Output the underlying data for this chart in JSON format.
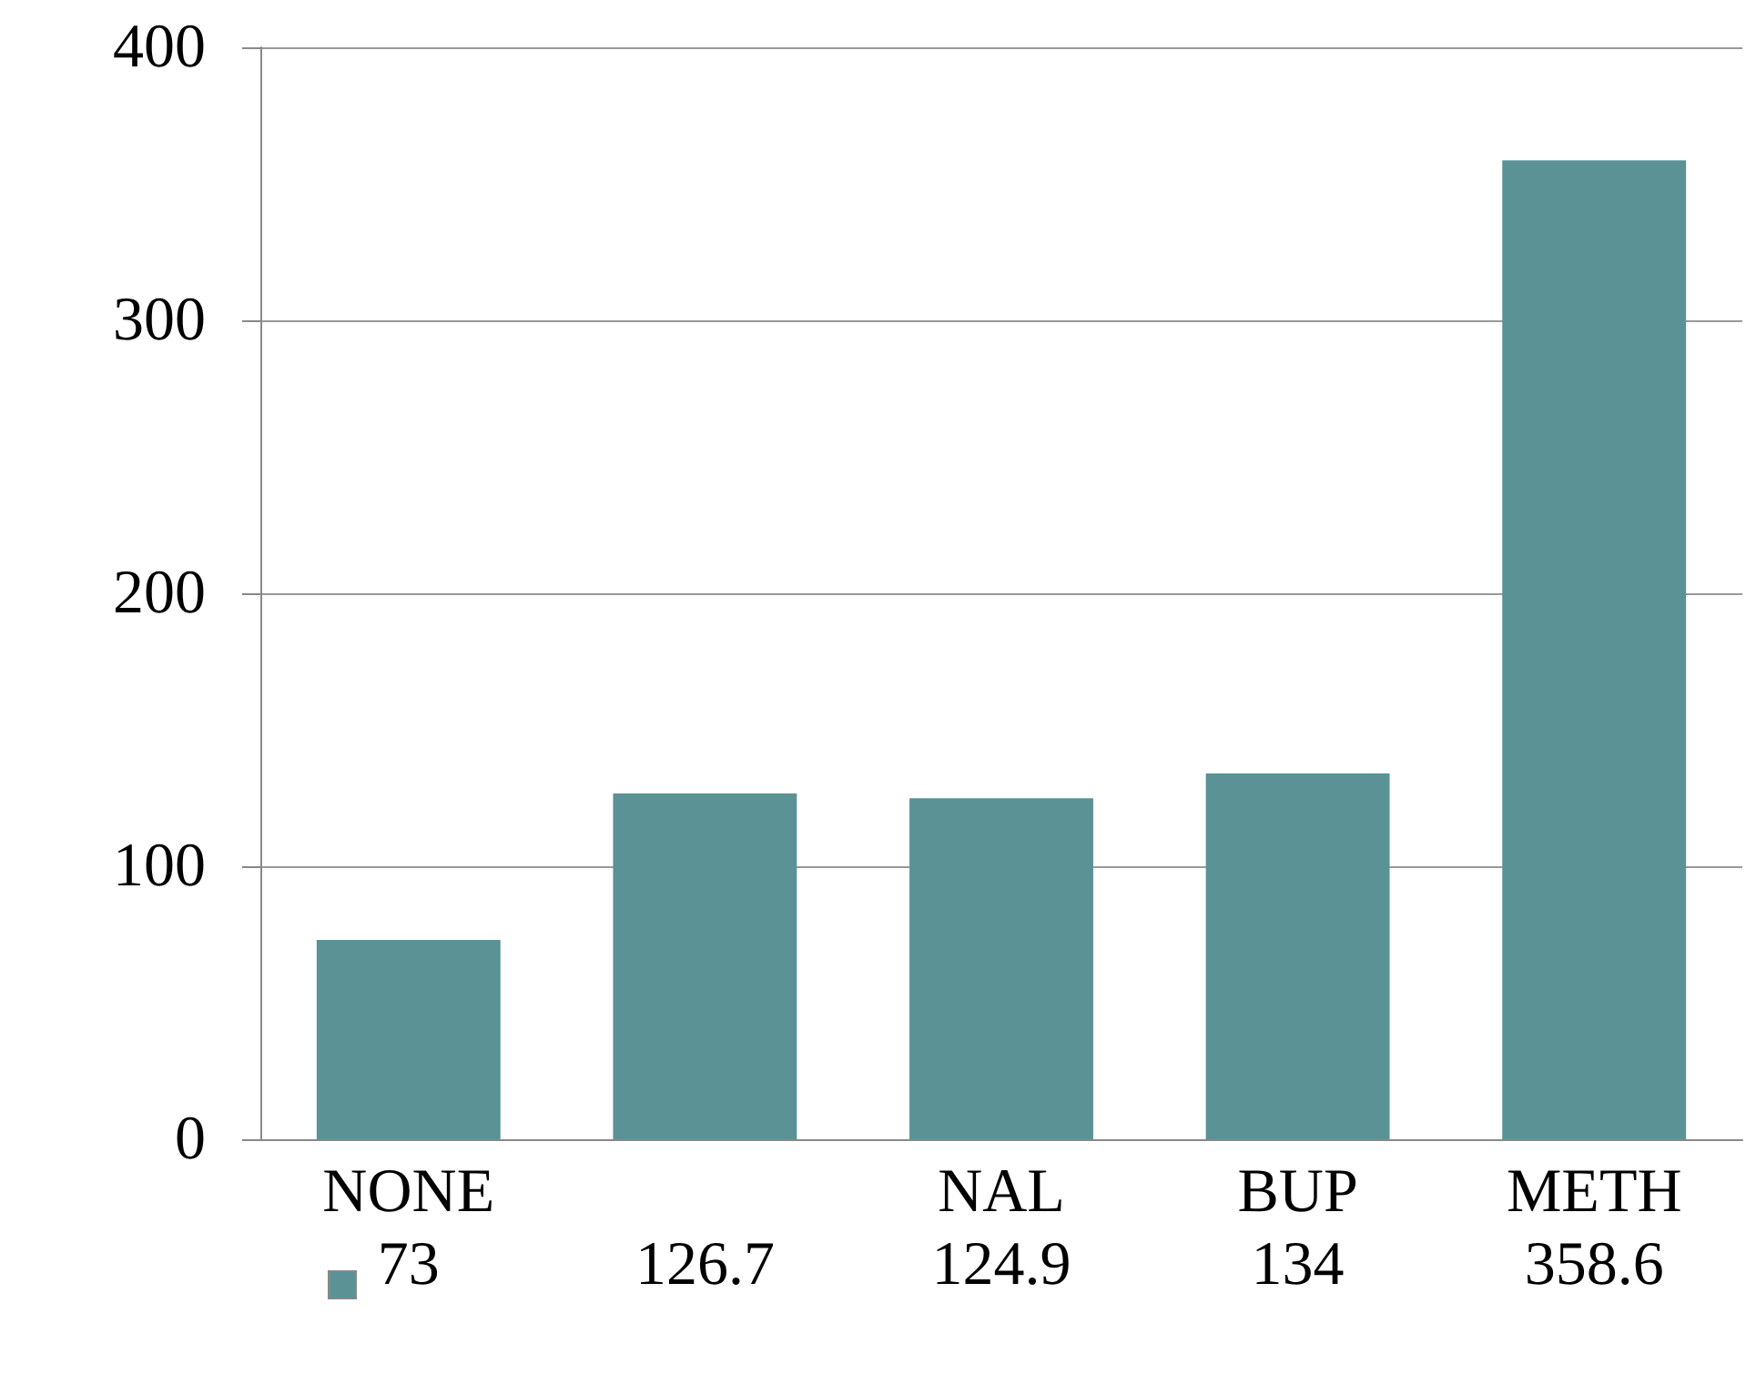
{
  "chart_data": {
    "type": "bar",
    "categories": [
      "NONE",
      null,
      "NAL",
      "BUP",
      "METH"
    ],
    "values": [
      73,
      126.7,
      124.9,
      134,
      358.6
    ],
    "color": "#5a9296",
    "ylim": [
      0,
      400
    ],
    "yticks": [
      0,
      100,
      200,
      300,
      400
    ],
    "grid": "y",
    "data_labels": true
  }
}
